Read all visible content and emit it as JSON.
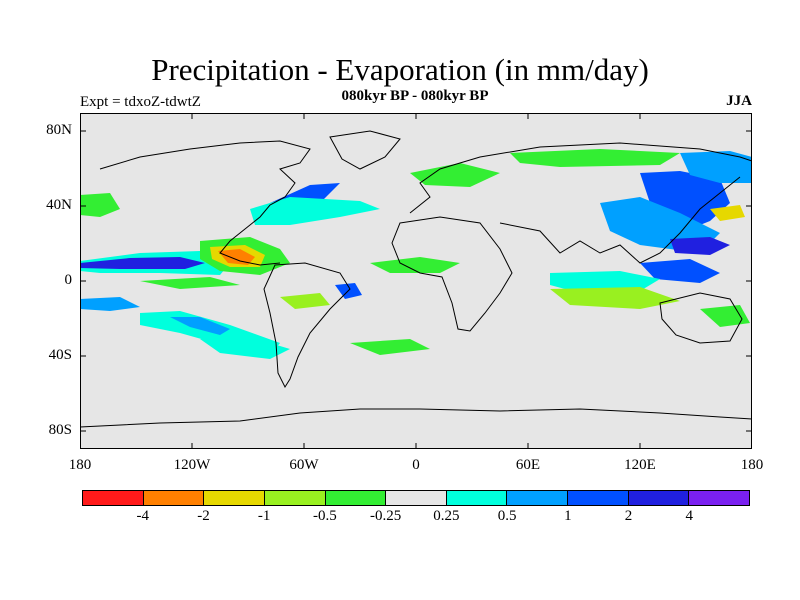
{
  "title": "Precipitation - Evaporation (in mm/day)",
  "subtitle": "080kyr BP - 080kyr BP",
  "expt_label": "Expt = tdxoZ-tdwtZ",
  "season": "JJA",
  "map": {
    "projection": "cylindrical equidistant",
    "background_color": "#e6e6e6",
    "lat_ticks": [
      "80N",
      "40N",
      "0",
      "40S",
      "80S"
    ],
    "lon_ticks": [
      "180",
      "120W",
      "60W",
      "0",
      "60E",
      "120E",
      "180"
    ]
  },
  "colorbar": {
    "colors": [
      "#ff1a1a",
      "#ff8000",
      "#e6d800",
      "#99f020",
      "#33ee33",
      "#e6e6e6",
      "#00ffdd",
      "#00a0ff",
      "#0050ff",
      "#2020e0",
      "#7a20f0"
    ],
    "labels": [
      "-4",
      "-2",
      "-1",
      "-0.5",
      "-0.25",
      "0.25",
      "0.5",
      "1",
      "2",
      "4"
    ]
  }
}
